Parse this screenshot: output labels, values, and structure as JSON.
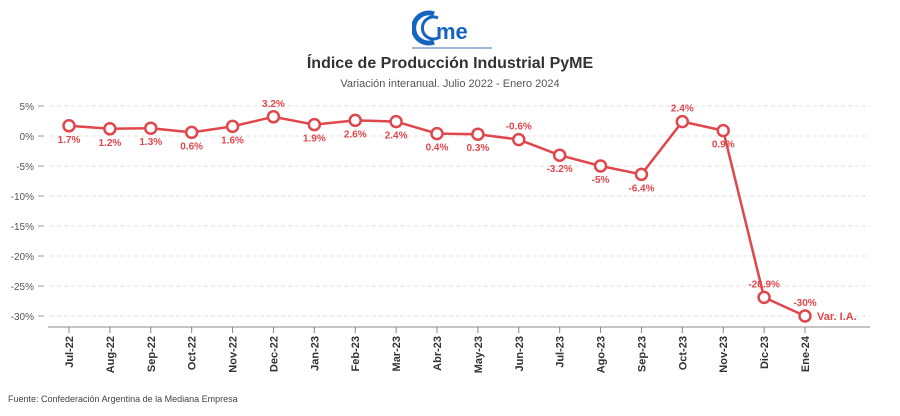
{
  "logo": {
    "text": "came",
    "tagline": "Confederación Argentina de la Mediana Empresa"
  },
  "header": {
    "title": "Índice de Producción Industrial PyME",
    "subtitle": "Variación interanual. Julio 2022 - Enero 2024"
  },
  "footer": {
    "source": "Fuente: Confederación Argentina de la Mediana Empresa"
  },
  "chart_data": {
    "type": "line",
    "title": "Índice de Producción Industrial PyME",
    "subtitle": "Variación interanual. Julio 2022 - Enero 2024",
    "categories": [
      "Jul-22",
      "Aug-22",
      "Sep-22",
      "Oct-22",
      "Nov-22",
      "Dec-22",
      "Jan-23",
      "Feb-23",
      "Mar-23",
      "Abr-23",
      "May-23",
      "Jun-23",
      "Jul-23",
      "Ago-23",
      "Sep-23",
      "Oct-23",
      "Nov-23",
      "Dic-23",
      "Ene-24"
    ],
    "series": [
      {
        "name": "Var. I.A.",
        "values": [
          1.7,
          1.2,
          1.3,
          0.6,
          1.6,
          3.2,
          1.9,
          2.6,
          2.4,
          0.4,
          0.3,
          -0.6,
          -3.2,
          -5,
          -6.4,
          2.4,
          0.9,
          -26.9,
          -30
        ],
        "labels": [
          "1.7%",
          "1.2%",
          "1.3%",
          "0.6%",
          "1.6%",
          "3.2%",
          "1.9%",
          "2.6%",
          "2.4%",
          "0.4%",
          "0.3%",
          "-0.6%",
          "-3.2%",
          "-5%",
          "-6.4%",
          "2.4%",
          "0.9%",
          "-26.9%",
          "-30%"
        ],
        "color": "#e0474c"
      }
    ],
    "yticks": [
      5,
      0,
      -5,
      -10,
      -15,
      -20,
      -25,
      -30
    ],
    "ytick_labels": [
      "5%",
      "0%",
      "-5%",
      "-10%",
      "-15%",
      "-20%",
      "-25%",
      "-30%"
    ],
    "ylim": [
      -32,
      5
    ],
    "grid": true,
    "legend": "inline-end"
  }
}
